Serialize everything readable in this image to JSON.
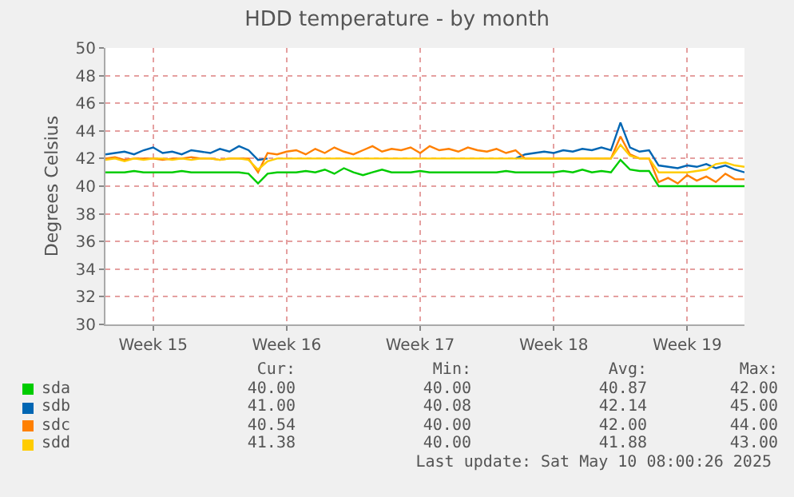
{
  "chart_data": {
    "type": "line",
    "title": "HDD temperature - by month",
    "ylabel": "Degrees Celsius",
    "categories": [
      null,
      null,
      null,
      null,
      null,
      "Week 15",
      null,
      null,
      null,
      null,
      null,
      null,
      null,
      null,
      null,
      null,
      null,
      null,
      null,
      "Week 16",
      null,
      null,
      null,
      null,
      null,
      null,
      null,
      null,
      null,
      null,
      null,
      null,
      null,
      "Week 17",
      null,
      null,
      null,
      null,
      null,
      null,
      null,
      null,
      null,
      null,
      null,
      null,
      null,
      "Week 18",
      null,
      null,
      null,
      null,
      null,
      null,
      null,
      null,
      null,
      null,
      null,
      null,
      null,
      "Week 19",
      null,
      null,
      null,
      null,
      null,
      null
    ],
    "ylim": [
      30,
      50
    ],
    "yticks": [
      30,
      32,
      34,
      36,
      38,
      40,
      42,
      44,
      46,
      48,
      50
    ],
    "grid": true,
    "legend": "bottom",
    "marker": "none",
    "line_style": "solid",
    "series": [
      {
        "name": "sda",
        "color": "#00cc00",
        "values": [
          41,
          41,
          41,
          41.1,
          41,
          41,
          41,
          41,
          41.1,
          41,
          41,
          41,
          41,
          41,
          41,
          40.9,
          40.2,
          40.9,
          41,
          41,
          41,
          41.1,
          41,
          41.2,
          40.9,
          41.3,
          41,
          40.8,
          41,
          41.2,
          41,
          41,
          41,
          41.1,
          41,
          41,
          41,
          41,
          41,
          41,
          41,
          41,
          41.1,
          41,
          41,
          41,
          41,
          41,
          41.1,
          41,
          41.2,
          41,
          41.1,
          41,
          41.9,
          41.2,
          41.1,
          41.1,
          40,
          40,
          40,
          40,
          40,
          40,
          40,
          40,
          40,
          40
        ]
      },
      {
        "name": "sdb",
        "color": "#0066b3",
        "values": [
          42.3,
          42.4,
          42.5,
          42.3,
          42.6,
          42.8,
          42.4,
          42.5,
          42.3,
          42.6,
          42.5,
          42.4,
          42.7,
          42.5,
          42.9,
          42.6,
          41.9,
          42,
          null,
          null,
          null,
          null,
          null,
          null,
          null,
          null,
          null,
          null,
          null,
          null,
          null,
          null,
          null,
          null,
          null,
          null,
          null,
          null,
          null,
          null,
          null,
          null,
          null,
          42,
          42.3,
          42.4,
          42.5,
          42.4,
          42.6,
          42.5,
          42.7,
          42.6,
          42.8,
          42.6,
          44.6,
          42.8,
          42.5,
          42.6,
          41.5,
          41.4,
          41.3,
          41.5,
          41.4,
          41.6,
          41.3,
          41.5,
          41.2,
          41
        ]
      },
      {
        "name": "sdc",
        "color": "#ff8000",
        "values": [
          42,
          42.1,
          41.9,
          42,
          42,
          42,
          41.9,
          42,
          42,
          42.1,
          42,
          42,
          41.9,
          42,
          42,
          42,
          41,
          42.4,
          42.3,
          42.5,
          42.6,
          42.3,
          42.7,
          42.4,
          42.8,
          42.5,
          42.3,
          42.6,
          42.9,
          42.5,
          42.7,
          42.6,
          42.8,
          42.4,
          42.9,
          42.6,
          42.7,
          42.5,
          42.8,
          42.6,
          42.5,
          42.7,
          42.4,
          42.6,
          42,
          42,
          42,
          42,
          42,
          42,
          42,
          42,
          42,
          42,
          43.6,
          42.3,
          42,
          42,
          40.3,
          40.6,
          40.2,
          40.8,
          40.4,
          40.7,
          40.3,
          40.9,
          40.5,
          40.5
        ]
      },
      {
        "name": "sdd",
        "color": "#ffcc00",
        "values": [
          41.9,
          42,
          41.8,
          42,
          41.9,
          42,
          42,
          41.9,
          42,
          41.9,
          42,
          42,
          41.9,
          42,
          42,
          41.9,
          41.2,
          41.8,
          42,
          42,
          42,
          42,
          42,
          42,
          42,
          42,
          42,
          42,
          42,
          42,
          42,
          42,
          42,
          42,
          42,
          42,
          42,
          42,
          42,
          42,
          42,
          42,
          42,
          42,
          42,
          42,
          42,
          42,
          42,
          42,
          42,
          42,
          42,
          42,
          43,
          42.2,
          42,
          42,
          41,
          41,
          41,
          41,
          41.1,
          41.2,
          41.6,
          41.7,
          41.5,
          41.4
        ]
      }
    ],
    "annotations": [
      "Cur:",
      "Min:",
      "Avg:",
      "Max:",
      "40.00",
      "40.00",
      "40.87",
      "42.00",
      "41.00",
      "40.08",
      "42.14",
      "45.00",
      "40.54",
      "40.00",
      "42.00",
      "44.00",
      "41.38",
      "40.00",
      "41.88",
      "43.00",
      "Last update: Sat May 10 08:00:26 2025"
    ]
  }
}
